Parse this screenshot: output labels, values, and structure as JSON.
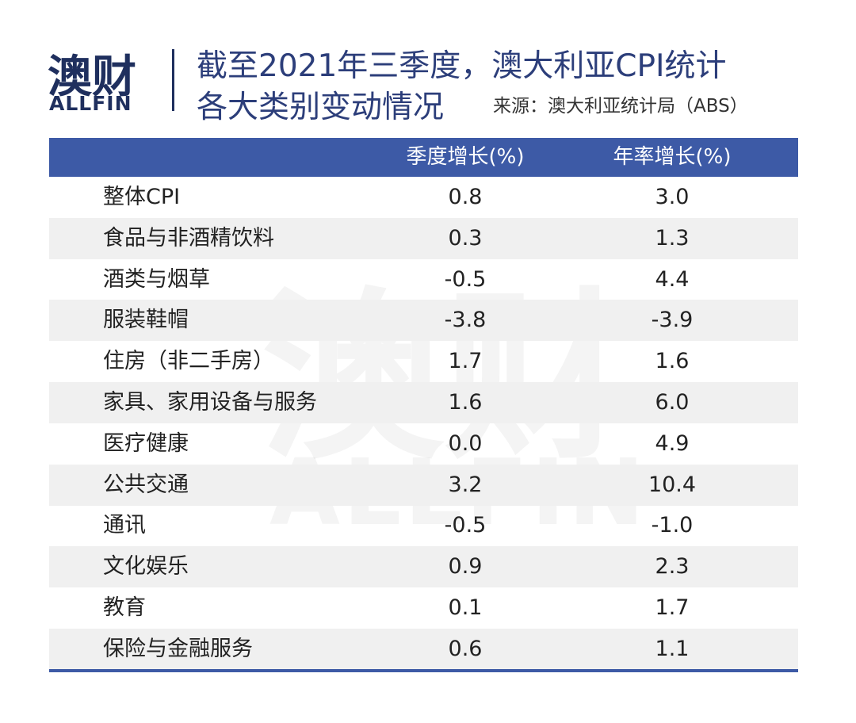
{
  "logo": {
    "name": "澳财",
    "sub": "ALLFIN"
  },
  "header": {
    "title_line1": "截至2021年三季度，澳大利亚CPI统计",
    "title_line2": "各大类别变动情况",
    "source": "来源：澳大利亚统计局（ABS）"
  },
  "watermark": {
    "name": "澳财",
    "sub": "ALLFIN"
  },
  "table": {
    "columns": [
      "季度增长(%)",
      "年率增长(%)"
    ],
    "rows": [
      [
        "整体CPI",
        "0.8",
        "3.0"
      ],
      [
        "食品与非酒精饮料",
        "0.3",
        "1.3"
      ],
      [
        "酒类与烟草",
        "-0.5",
        "4.4"
      ],
      [
        "服装鞋帽",
        "-3.8",
        "-3.9"
      ],
      [
        "住房（非二手房）",
        "1.7",
        "1.6"
      ],
      [
        "家具、家用设备与服务",
        "1.6",
        "6.0"
      ],
      [
        "医疗健康",
        "0.0",
        "4.9"
      ],
      [
        "公共交通",
        "3.2",
        "10.4"
      ],
      [
        "通讯",
        "-0.5",
        "-1.0"
      ],
      [
        "文化娱乐",
        "0.9",
        "2.3"
      ],
      [
        "教育",
        "0.1",
        "1.7"
      ],
      [
        "保险与金融服务",
        "0.6",
        "1.1"
      ]
    ]
  }
}
